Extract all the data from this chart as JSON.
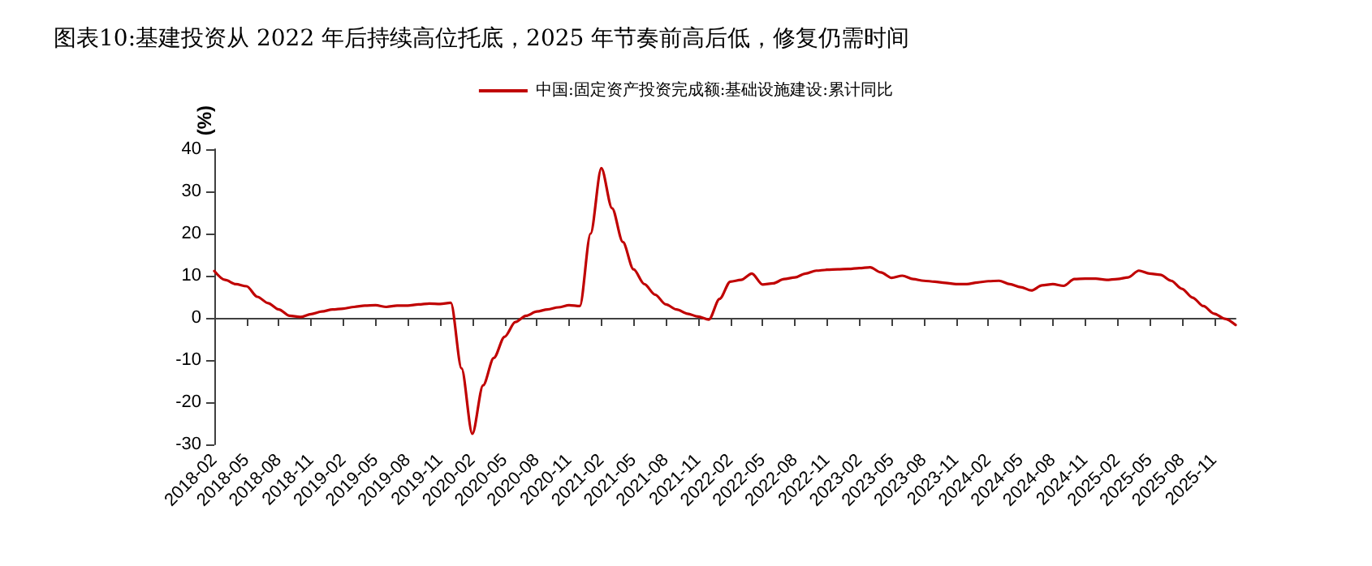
{
  "chart_data": {
    "type": "line",
    "title": "图表10:基建投资从 2022 年后持续高位托底，2025 年节奏前高后低，修复仍需时间",
    "ylabel": "(%)",
    "categories": [
      "2018-02",
      null,
      null,
      "2018-05",
      null,
      null,
      "2018-08",
      null,
      null,
      "2018-11",
      null,
      null,
      "2019-02",
      null,
      null,
      "2019-05",
      null,
      null,
      "2019-08",
      null,
      null,
      "2019-11",
      null,
      null,
      "2020-02",
      null,
      null,
      "2020-05",
      null,
      null,
      "2020-08",
      null,
      null,
      "2020-11",
      null,
      null,
      "2021-02",
      null,
      null,
      "2021-05",
      null,
      null,
      "2021-08",
      null,
      null,
      "2021-11",
      null,
      null,
      "2022-02",
      null,
      null,
      "2022-05",
      null,
      null,
      "2022-08",
      null,
      null,
      "2022-11",
      null,
      null,
      "2023-02",
      null,
      null,
      "2023-05",
      null,
      null,
      "2023-08",
      null,
      null,
      "2023-11",
      null,
      null,
      "2024-02",
      null,
      null,
      "2024-05",
      null,
      null,
      "2024-08",
      null,
      null,
      "2024-11",
      null,
      null,
      "2025-02",
      null,
      null,
      "2025-05",
      null,
      null,
      "2025-08",
      null,
      null,
      "2025-11",
      null,
      null
    ],
    "series": [
      {
        "name": "中国:固定资产投资完成额:基础设施建设:累计同比",
        "color": "#c00000",
        "values": [
          11.1,
          9,
          8,
          7.5,
          5,
          3.5,
          2,
          0.5,
          0.2,
          0.9,
          1.5,
          2,
          2.2,
          2.6,
          2.9,
          3,
          2.6,
          2.9,
          2.9,
          3.2,
          3.4,
          3.3,
          3.6,
          -12,
          -27.5,
          -16,
          -9.5,
          -4.5,
          -1,
          0.5,
          1.5,
          2,
          2.5,
          3,
          2.8,
          20,
          35.5,
          26,
          18,
          11.5,
          8,
          5.5,
          3.2,
          2,
          1,
          0.3,
          -0.4,
          4.5,
          8.6,
          9,
          10.5,
          7.9,
          8.2,
          9.2,
          9.6,
          10.5,
          11.2,
          11.4,
          11.5,
          11.6,
          11.8,
          12,
          10.8,
          9.5,
          10,
          9.2,
          8.8,
          8.6,
          8.3,
          8,
          8,
          8.4,
          8.7,
          8.8,
          8,
          7.3,
          6.5,
          7.7,
          8,
          7.6,
          9.2,
          9.3,
          9.3,
          9,
          9.2,
          9.6,
          11.2,
          10.5,
          10.2,
          8.8,
          6.9,
          4.8,
          2.8,
          1,
          -0.2,
          -1.7
        ]
      }
    ],
    "ylim": [
      -30,
      40
    ],
    "yticks": [
      -30,
      -20,
      -10,
      0,
      10,
      20,
      30,
      40
    ],
    "legend": "top",
    "marker": "none",
    "line_style": "solid"
  }
}
